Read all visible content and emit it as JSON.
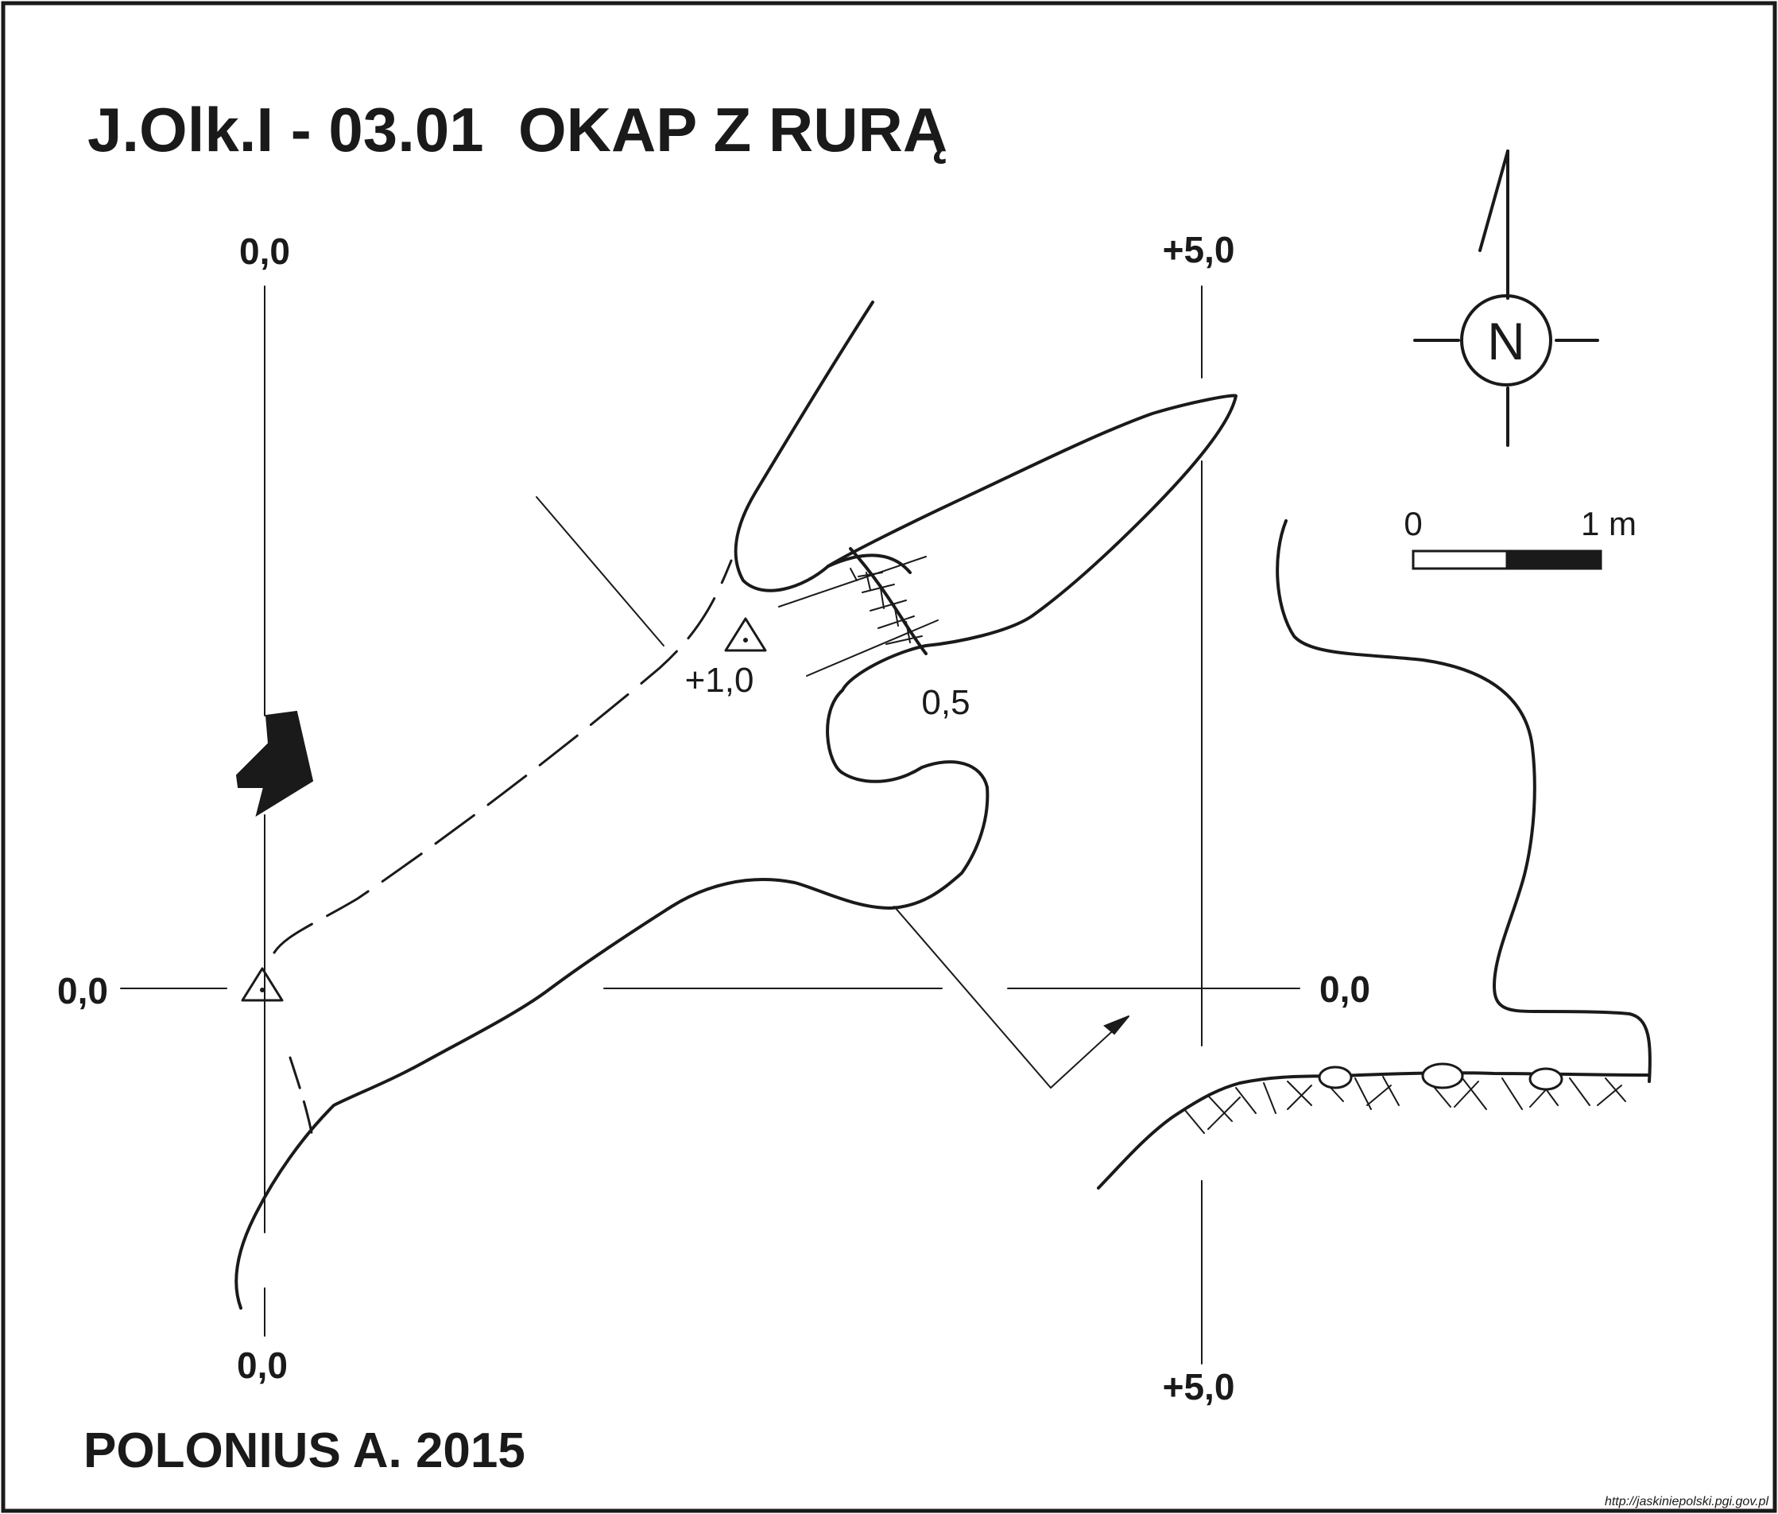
{
  "title": "J.Olk.I - 03.01  OKAP Z RURĄ",
  "author": "POLONIUS A. 2015",
  "source_url": "http://jaskiniepolski.pgi.gov.pl",
  "grid_labels": {
    "left_top": "0,0",
    "left_bottom": "0,0",
    "left_mid": "0,0",
    "right_top": "+5,0",
    "right_bottom": "+5,0",
    "right_mid": "0,0"
  },
  "station_labels": {
    "station_1": "+1,0",
    "ledge": "0,5"
  },
  "compass": {
    "label": "N"
  },
  "scale_bar": {
    "start_label": "0",
    "end_label": "1 m"
  },
  "colors": {
    "ink": "#1a1a1a",
    "background": "#ffffff"
  }
}
